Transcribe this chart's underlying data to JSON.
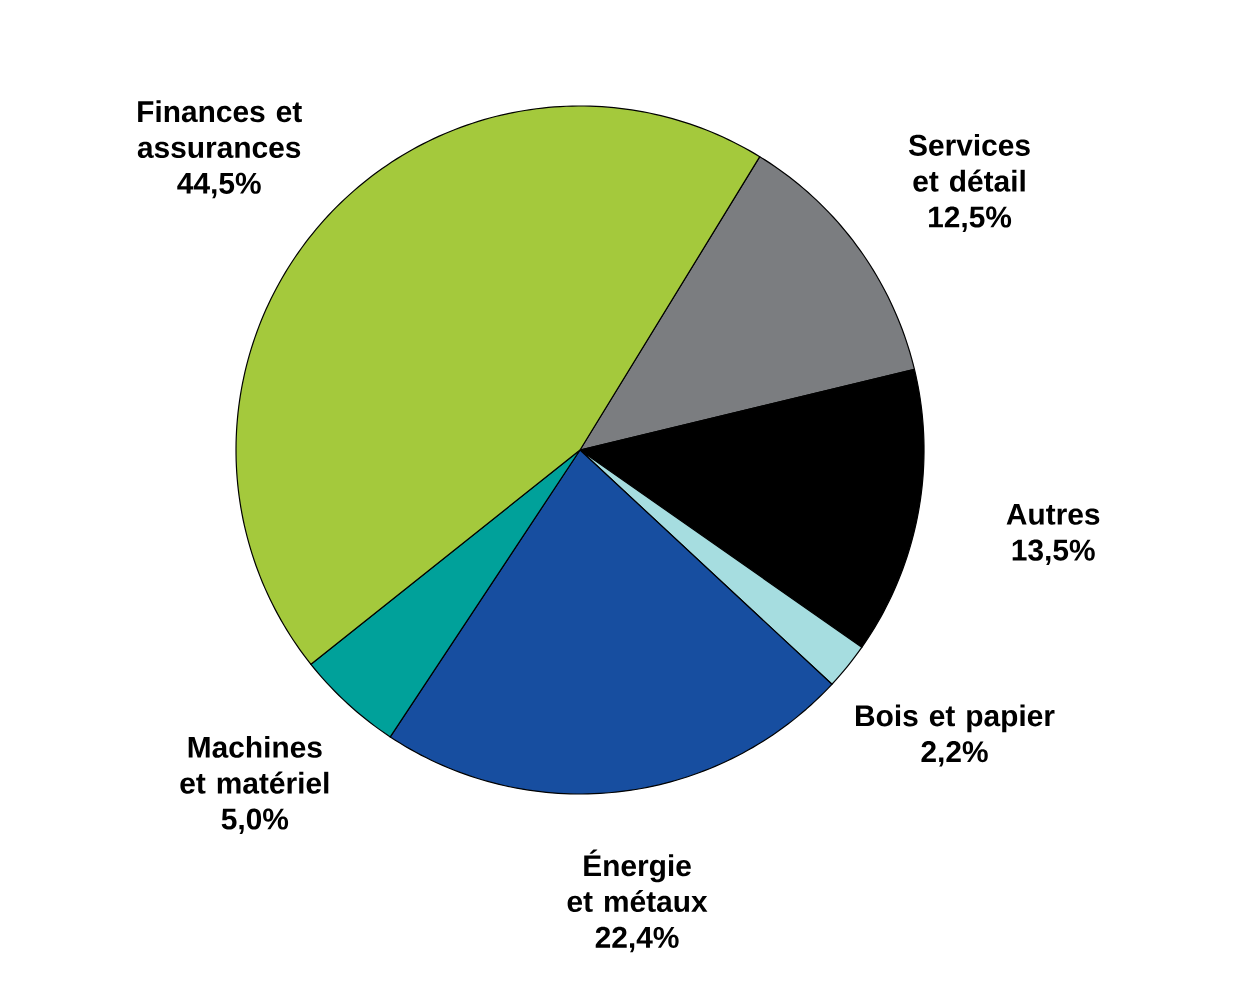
{
  "chart_data": {
    "type": "pie",
    "categories": [
      "Services et détail",
      "Autres",
      "Bois et papier",
      "Énergie et métaux",
      "Machines et matériel",
      "Finances et assurances"
    ],
    "values": [
      12.5,
      13.5,
      2.2,
      22.4,
      5.0,
      44.5
    ],
    "value_labels": [
      "12,5%",
      "13,5%",
      "2,2%",
      "22,4%",
      "5,0%",
      "44,5%"
    ],
    "colors": [
      "#7b7d80",
      "#000000",
      "#a6dde0",
      "#174ea0",
      "#00a19a",
      "#a4c93c"
    ]
  }
}
